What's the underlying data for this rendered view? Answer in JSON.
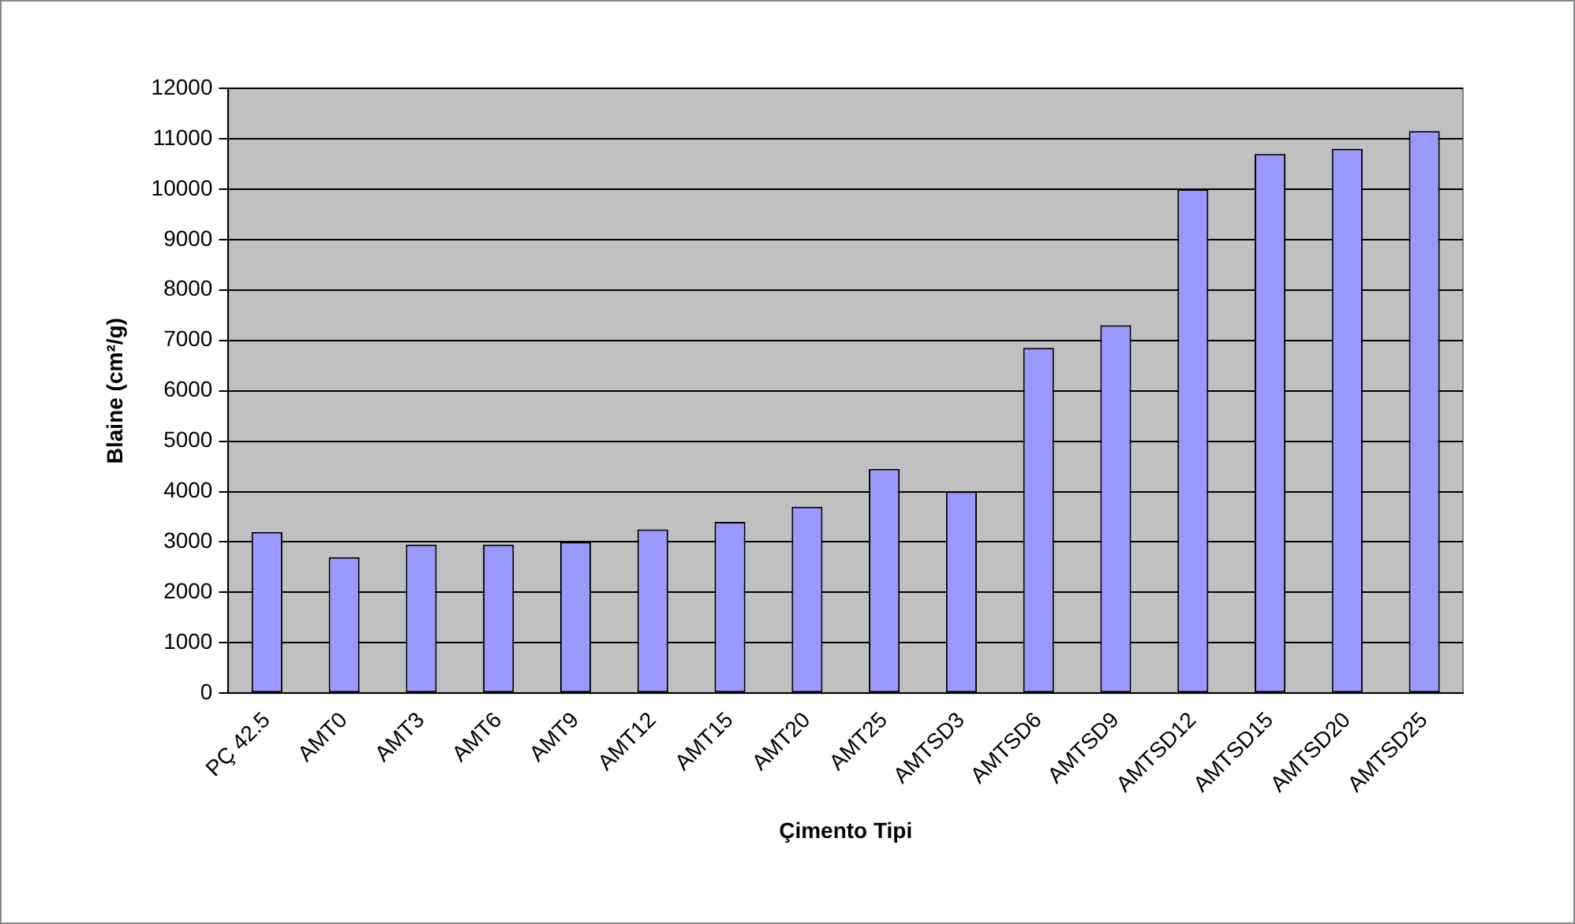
{
  "chart_data": {
    "type": "bar",
    "xlabel": "Çimento Tipi",
    "ylabel": "Blaine (cm²/g)",
    "categories": [
      "PÇ 42.5",
      "AMT0",
      "AMT3",
      "AMT6",
      "AMT9",
      "AMT12",
      "AMT15",
      "AMT20",
      "AMT25",
      "AMTSD3",
      "AMTSD6",
      "AMTSD9",
      "AMTSD12",
      "AMTSD15",
      "AMTSD20",
      "AMTSD25"
    ],
    "values": [
      3200,
      2700,
      2950,
      2950,
      3000,
      3250,
      3400,
      3700,
      4450,
      4000,
      6850,
      7300,
      10000,
      10700,
      10800,
      11150
    ],
    "color": "#9999ff",
    "ylim": [
      0,
      12000
    ],
    "yticks": [
      0,
      1000,
      2000,
      3000,
      4000,
      5000,
      6000,
      7000,
      8000,
      9000,
      10000,
      11000,
      12000
    ],
    "grid": "y",
    "legend": false
  }
}
